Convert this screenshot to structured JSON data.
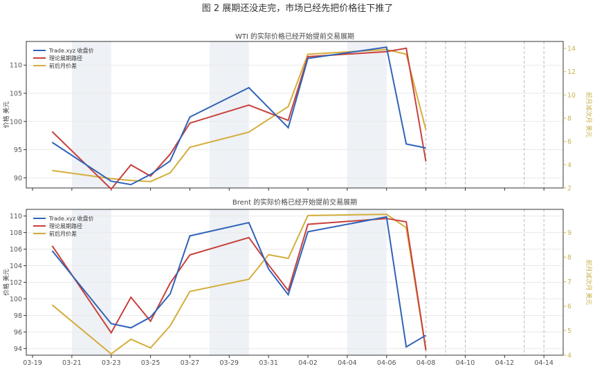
{
  "figure_title": "图 2  展期还没走完，市场已经先把价格往下推了",
  "x_ticks": [
    "03-19",
    "03-21",
    "03-23",
    "03-25",
    "03-27",
    "03-29",
    "03-31",
    "04-02",
    "04-04",
    "04-06",
    "04-08",
    "04-10",
    "04-12",
    "04-14"
  ],
  "legend": [
    "Trade.xyz 收盘价",
    "理论展期路径",
    "前后月价差"
  ],
  "colors": {
    "blue": "#2f62b8",
    "red": "#c8403c",
    "yellow": "#d4ad3a",
    "band": "#eef1f5",
    "grid": "#e9e9e9",
    "right_axis": "#c8b24a"
  },
  "chart_data": [
    {
      "type": "line",
      "title": "WTI 的实际价格已经开始提前交易展期",
      "ylabel": "价格 美元",
      "ylabel_right": "前月减次月 美元",
      "ylim": [
        88.2,
        114.2
      ],
      "ylim_right": [
        2,
        14.6
      ],
      "yticks": [
        90,
        95,
        100,
        105,
        110
      ],
      "yticks_right": [
        2,
        4,
        6,
        8,
        10,
        12,
        14
      ],
      "x": [
        "03-20",
        "03-23",
        "03-24",
        "03-25",
        "03-26",
        "03-27",
        "03-30",
        "04-01",
        "04-02",
        "04-06",
        "04-07",
        "04-08"
      ],
      "series": [
        {
          "name": "Trade.xyz 收盘价",
          "axis": "left",
          "values": [
            96.3,
            89.4,
            88.8,
            90.6,
            93.0,
            100.8,
            106.0,
            98.9,
            111.2,
            113.2,
            96.0,
            95.3
          ]
        },
        {
          "name": "理论展期路径",
          "axis": "left",
          "values": [
            98.2,
            88.0,
            92.3,
            90.3,
            94.2,
            99.7,
            102.9,
            100.2,
            111.5,
            112.4,
            113.0,
            92.9
          ]
        },
        {
          "name": "前后月价差",
          "axis": "right",
          "values": [
            3.5,
            2.8,
            2.65,
            2.55,
            3.3,
            5.5,
            6.8,
            9.0,
            13.5,
            13.9,
            13.5,
            7.0
          ]
        }
      ],
      "shaded_ranges": [
        [
          "03-21",
          "03-23"
        ],
        [
          "03-28",
          "03-30"
        ],
        [
          "04-04",
          "04-06"
        ]
      ],
      "dashed_vlines": [
        "04-08",
        "04-09",
        "04-10",
        "04-13",
        "04-14"
      ]
    },
    {
      "type": "line",
      "title": "Brent 的实际价格已经开始提前交易展期",
      "ylabel": "价格 美元",
      "ylabel_right": "前月减次月 美元",
      "ylim": [
        93.2,
        110.8
      ],
      "ylim_right": [
        4,
        9.95
      ],
      "yticks": [
        94,
        96,
        98,
        100,
        102,
        104,
        106,
        108,
        110
      ],
      "yticks_right": [
        4,
        5,
        6,
        7,
        8,
        9
      ],
      "x": [
        "03-20",
        "03-23",
        "03-24",
        "03-25",
        "03-26",
        "03-27",
        "03-30",
        "03-31",
        "04-01",
        "04-02",
        "04-06",
        "04-07",
        "04-08"
      ],
      "series": [
        {
          "name": "Trade.xyz 收盘价",
          "axis": "left",
          "values": [
            105.8,
            97.0,
            96.5,
            97.8,
            100.6,
            107.6,
            109.2,
            103.6,
            100.5,
            108.1,
            109.9,
            94.2,
            95.6
          ]
        },
        {
          "name": "理论展期路径",
          "axis": "left",
          "values": [
            106.4,
            95.9,
            100.2,
            97.3,
            101.9,
            105.3,
            107.4,
            104.1,
            101.0,
            109.0,
            109.7,
            109.3,
            93.8
          ]
        },
        {
          "name": "前后月价差",
          "axis": "right",
          "values": [
            6.05,
            4.05,
            4.65,
            4.3,
            5.2,
            6.6,
            7.1,
            8.1,
            7.95,
            9.7,
            9.75,
            9.2,
            4.2
          ]
        }
      ],
      "shaded_ranges": [
        [
          "03-21",
          "03-23"
        ],
        [
          "03-28",
          "03-30"
        ],
        [
          "04-04",
          "04-06"
        ]
      ],
      "dashed_vlines": [
        "04-08",
        "04-09",
        "04-10",
        "04-13",
        "04-14"
      ]
    }
  ]
}
